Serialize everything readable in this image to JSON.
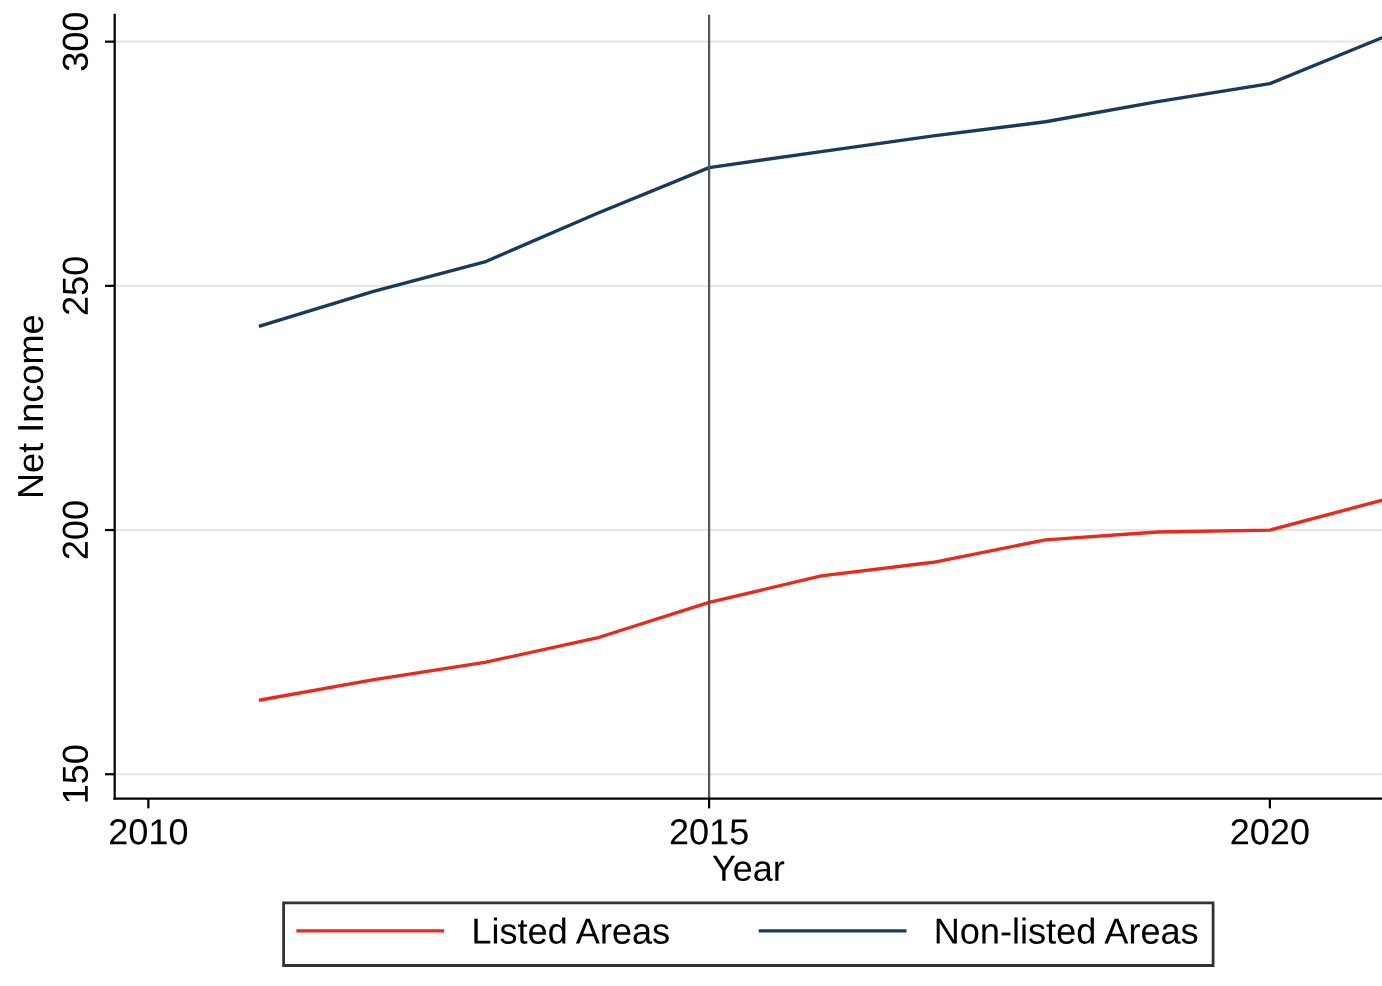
{
  "chart_data": {
    "type": "line",
    "xlabel": "Year",
    "ylabel": "Net Income",
    "x": [
      2011,
      2012,
      2013,
      2014,
      2015,
      2016,
      2017,
      2018,
      2019,
      2020,
      2021
    ],
    "series": [
      {
        "name": "Listed Areas",
        "color": "#e8291c",
        "values": [
          165.2,
          169.3,
          172.9,
          177.9,
          185.2,
          190.6,
          193.4,
          198.0,
          199.6,
          200.0,
          206.1
        ]
      },
      {
        "name": "Non-listed Areas",
        "color": "#1a3a5c",
        "values": [
          241.8,
          248.8,
          254.9,
          264.8,
          274.2,
          277.5,
          280.7,
          283.6,
          287.7,
          291.4,
          300.8
        ]
      }
    ],
    "xlim": [
      2009.7,
      2021
    ],
    "xticks": [
      2010,
      2015,
      2020
    ],
    "ylim": [
      145,
      305.5
    ],
    "yticks": [
      150,
      200,
      250,
      300
    ],
    "grid": "y",
    "legend": "bottom",
    "marker": "none",
    "line_style": "solid",
    "ref_lines": [
      {
        "axis": "x",
        "value": 2015,
        "color": "#555555"
      }
    ]
  }
}
